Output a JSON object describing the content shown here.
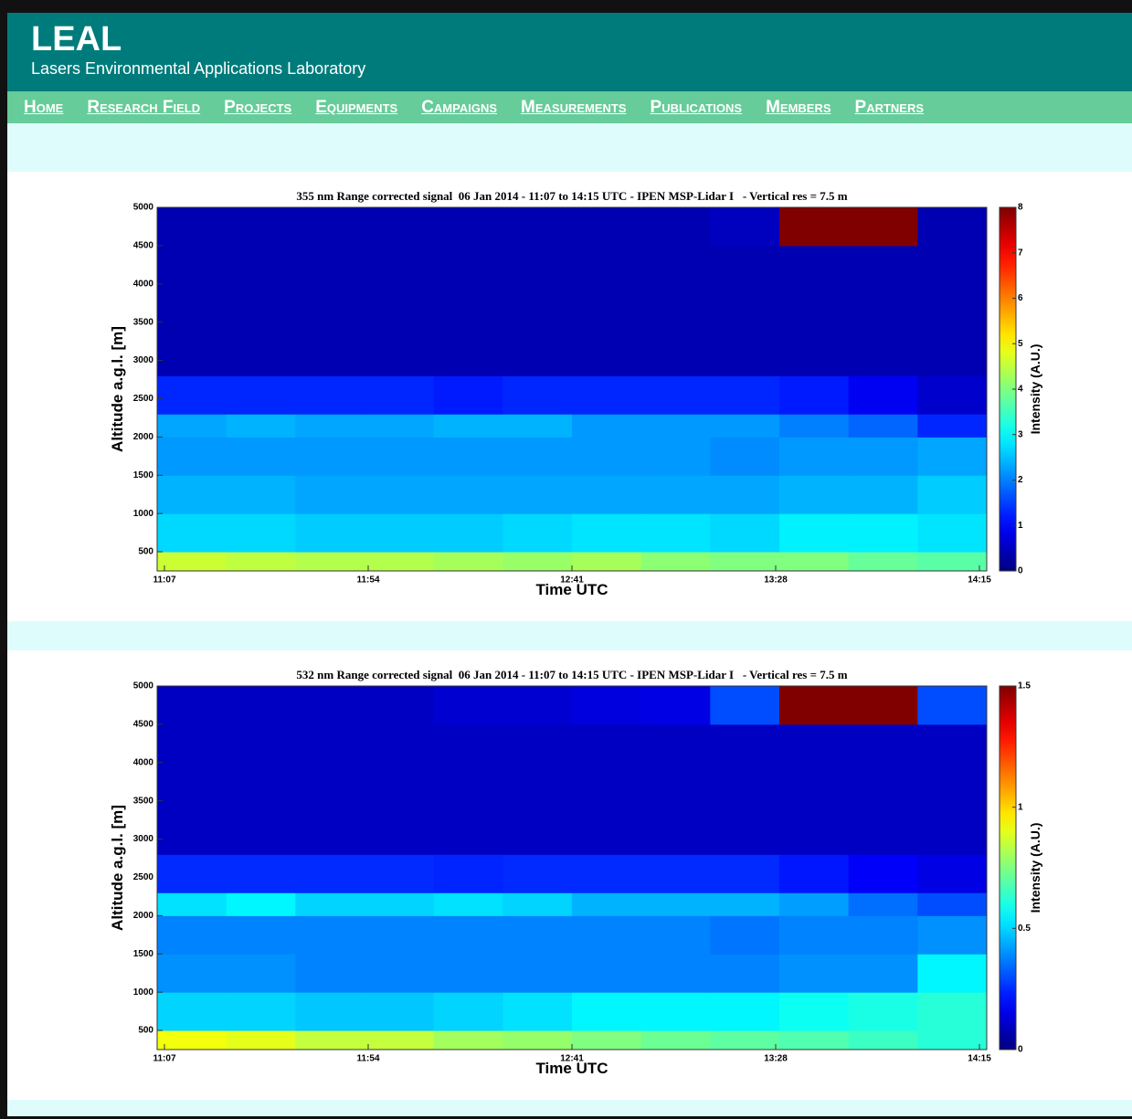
{
  "header": {
    "title": "LEAL",
    "subtitle": "Lasers Environmental Applications Laboratory"
  },
  "nav": [
    "Home",
    "Research Field",
    "Projects",
    "Equipments",
    "Campaigns",
    "Measurements",
    "Publications",
    "Members",
    "Partners"
  ],
  "chart_data": [
    {
      "type": "heatmap",
      "title": "355 nm Range corrected signal  06 Jan 2014 - 11:07 to 14:15 UTC - IPEN MSP-Lidar I   - Vertical res = 7.5 m",
      "xlabel": "Time UTC",
      "ylabel": "Altitude a.g.l. [m]",
      "clabel": "Intensity (A.U.)",
      "colormap": "jet",
      "xticks": [
        "11:07",
        "11:54",
        "12:41",
        "13:28",
        "14:15"
      ],
      "ylim": [
        250,
        5000
      ],
      "yticks": [
        500,
        1000,
        1500,
        2000,
        2500,
        3000,
        3500,
        4000,
        4500,
        5000
      ],
      "y_bins": [
        250,
        500,
        1000,
        1500,
        2000,
        2300,
        2800,
        4500,
        5000
      ],
      "clim": [
        0,
        8
      ],
      "cticks": [
        0,
        1,
        2,
        3,
        4,
        5,
        6,
        7,
        8
      ],
      "z": [
        [
          4.6,
          4.5,
          4.4,
          4.4,
          4.3,
          4.2,
          4.3,
          4.1,
          4.0,
          4.0,
          3.8,
          3.7
        ],
        [
          2.7,
          2.7,
          2.6,
          2.6,
          2.6,
          2.7,
          2.8,
          2.8,
          2.7,
          2.9,
          2.9,
          2.8
        ],
        [
          2.4,
          2.4,
          2.3,
          2.3,
          2.3,
          2.3,
          2.3,
          2.3,
          2.3,
          2.4,
          2.4,
          2.6
        ],
        [
          2.2,
          2.2,
          2.2,
          2.2,
          2.2,
          2.2,
          2.2,
          2.2,
          2.1,
          2.2,
          2.2,
          2.3
        ],
        [
          2.3,
          2.4,
          2.3,
          2.3,
          2.4,
          2.4,
          2.2,
          2.2,
          2.2,
          2.0,
          1.8,
          1.3
        ],
        [
          1.3,
          1.3,
          1.3,
          1.3,
          1.2,
          1.3,
          1.3,
          1.3,
          1.3,
          1.2,
          0.9,
          0.6
        ],
        [
          0.4,
          0.4,
          0.4,
          0.4,
          0.4,
          0.4,
          0.4,
          0.4,
          0.4,
          0.4,
          0.4,
          0.4
        ],
        [
          0.4,
          0.4,
          0.4,
          0.4,
          0.4,
          0.4,
          0.4,
          0.4,
          0.5,
          8,
          8,
          0.4
        ]
      ]
    },
    {
      "type": "heatmap",
      "title": "532 nm Range corrected signal  06 Jan 2014 - 11:07 to 14:15 UTC - IPEN MSP-Lidar I   - Vertical res = 7.5 m",
      "xlabel": "Time UTC",
      "ylabel": "Altitude a.g.l. [m]",
      "clabel": "Intensity (A.U.)",
      "colormap": "jet",
      "xticks": [
        "11:07",
        "11:54",
        "12:41",
        "13:28",
        "14:15"
      ],
      "ylim": [
        250,
        5000
      ],
      "yticks": [
        500,
        1000,
        1500,
        2000,
        2500,
        3000,
        3500,
        4000,
        4500,
        5000
      ],
      "y_bins": [
        250,
        500,
        1000,
        1500,
        2000,
        2300,
        2800,
        4500,
        5000
      ],
      "clim": [
        0,
        1.5
      ],
      "cticks": [
        0,
        0.5,
        1,
        1.5
      ],
      "z": [
        [
          0.92,
          0.9,
          0.85,
          0.85,
          0.8,
          0.78,
          0.75,
          0.72,
          0.7,
          0.68,
          0.65,
          0.62
        ],
        [
          0.5,
          0.5,
          0.48,
          0.48,
          0.5,
          0.52,
          0.55,
          0.55,
          0.55,
          0.58,
          0.6,
          0.62
        ],
        [
          0.4,
          0.4,
          0.38,
          0.38,
          0.38,
          0.38,
          0.38,
          0.38,
          0.38,
          0.4,
          0.4,
          0.55
        ],
        [
          0.38,
          0.38,
          0.38,
          0.38,
          0.38,
          0.38,
          0.38,
          0.38,
          0.36,
          0.38,
          0.38,
          0.4
        ],
        [
          0.52,
          0.55,
          0.5,
          0.5,
          0.52,
          0.5,
          0.45,
          0.45,
          0.45,
          0.42,
          0.35,
          0.3
        ],
        [
          0.25,
          0.25,
          0.25,
          0.25,
          0.24,
          0.25,
          0.25,
          0.25,
          0.25,
          0.22,
          0.18,
          0.15
        ],
        [
          0.1,
          0.1,
          0.1,
          0.1,
          0.1,
          0.1,
          0.1,
          0.1,
          0.1,
          0.1,
          0.1,
          0.1
        ],
        [
          0.1,
          0.1,
          0.1,
          0.1,
          0.12,
          0.12,
          0.14,
          0.15,
          0.3,
          1.5,
          1.5,
          0.3
        ]
      ]
    }
  ]
}
